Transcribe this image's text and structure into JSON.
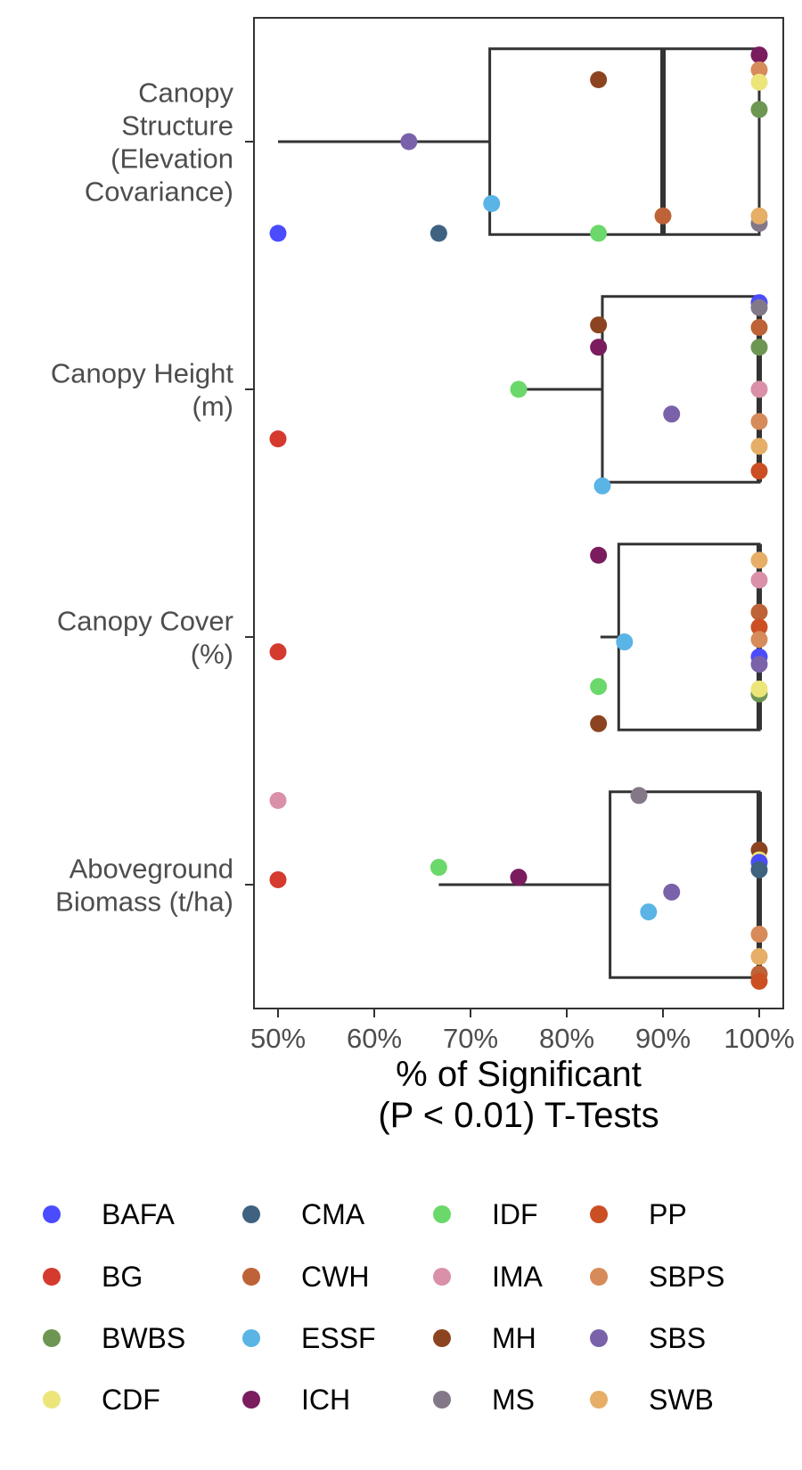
{
  "chart_data": {
    "type": "box-dot",
    "orientation": "horizontal",
    "categories": [
      {
        "label_lines": [
          "Canopy",
          "Structure",
          "(Elevation",
          "Covariance)"
        ]
      },
      {
        "label_lines": [
          "Canopy Height",
          "(m)"
        ]
      },
      {
        "label_lines": [
          "Canopy Cover",
          "(%)"
        ]
      },
      {
        "label_lines": [
          "Aboveground",
          "Biomass (t/ha)"
        ]
      }
    ],
    "xlabel_lines": [
      "% of Significant",
      "(P < 0.01) T-Tests"
    ],
    "xlim": [
      47.5,
      102.5
    ],
    "xticks": [
      50,
      60,
      70,
      80,
      90,
      100
    ],
    "xtick_labels": [
      "50%",
      "60%",
      "70%",
      "80%",
      "90%",
      "100%"
    ],
    "grid": false,
    "legend_position": "bottom",
    "series": [
      {
        "name": "BAFA",
        "color": "#4b4bff"
      },
      {
        "name": "BG",
        "color": "#d53a2f"
      },
      {
        "name": "BWBS",
        "color": "#6e9653"
      },
      {
        "name": "CDF",
        "color": "#ece57a"
      },
      {
        "name": "CMA",
        "color": "#3e6280"
      },
      {
        "name": "CWH",
        "color": "#be6237"
      },
      {
        "name": "ESSF",
        "color": "#5ab4e5"
      },
      {
        "name": "ICH",
        "color": "#7a1c5e"
      },
      {
        "name": "IDF",
        "color": "#6ad86a"
      },
      {
        "name": "IMA",
        "color": "#d990a8"
      },
      {
        "name": "MH",
        "color": "#8c4420"
      },
      {
        "name": "MS",
        "color": "#827887"
      },
      {
        "name": "PP",
        "color": "#cc4f24"
      },
      {
        "name": "SBPS",
        "color": "#d78a5a"
      },
      {
        "name": "SBS",
        "color": "#7a62aa"
      },
      {
        "name": "SWB",
        "color": "#e6ae66"
      }
    ],
    "boxes": [
      {
        "category": 0,
        "whisker_low": 50,
        "q1": 72,
        "median": 90,
        "q3": 100,
        "whisker_high": 100
      },
      {
        "category": 1,
        "whisker_low": 75,
        "q1": 83.7,
        "median": 100,
        "q3": 100,
        "whisker_high": 100
      },
      {
        "category": 2,
        "whisker_low": 83.5,
        "q1": 85.4,
        "median": 100,
        "q3": 100,
        "whisker_high": 100
      },
      {
        "category": 3,
        "whisker_low": 66.7,
        "q1": 84.5,
        "median": 100,
        "q3": 100,
        "whisker_high": 100
      }
    ],
    "points": [
      {
        "category": 0,
        "series": "ICH",
        "value": 100,
        "jitter": 0.35
      },
      {
        "category": 0,
        "series": "SBPS",
        "value": 100,
        "jitter": 0.29
      },
      {
        "category": 0,
        "series": "CDF",
        "value": 100,
        "jitter": 0.24
      },
      {
        "category": 0,
        "series": "BWBS",
        "value": 100,
        "jitter": 0.13
      },
      {
        "category": 0,
        "series": "MH",
        "value": 83.3,
        "jitter": 0.25
      },
      {
        "category": 0,
        "series": "SBS",
        "value": 63.6,
        "jitter": 0.0
      },
      {
        "category": 0,
        "series": "ESSF",
        "value": 72.2,
        "jitter": -0.25
      },
      {
        "category": 0,
        "series": "CWH",
        "value": 90,
        "jitter": -0.3
      },
      {
        "category": 0,
        "series": "MS",
        "value": 100,
        "jitter": -0.33
      },
      {
        "category": 0,
        "series": "SWB",
        "value": 100,
        "jitter": -0.3
      },
      {
        "category": 0,
        "series": "BAFA",
        "value": 50,
        "jitter": -0.37
      },
      {
        "category": 0,
        "series": "CMA",
        "value": 66.7,
        "jitter": -0.37
      },
      {
        "category": 0,
        "series": "IDF",
        "value": 83.3,
        "jitter": -0.37
      },
      {
        "category": 1,
        "series": "BAFA",
        "value": 100,
        "jitter": 0.35
      },
      {
        "category": 1,
        "series": "MS",
        "value": 100,
        "jitter": 0.33
      },
      {
        "category": 1,
        "series": "MH",
        "value": 83.3,
        "jitter": 0.26
      },
      {
        "category": 1,
        "series": "CWH",
        "value": 100,
        "jitter": 0.25
      },
      {
        "category": 1,
        "series": "ICH",
        "value": 83.3,
        "jitter": 0.17
      },
      {
        "category": 1,
        "series": "BWBS",
        "value": 100,
        "jitter": 0.17
      },
      {
        "category": 1,
        "series": "IDF",
        "value": 75,
        "jitter": 0.0
      },
      {
        "category": 1,
        "series": "CDF",
        "value": 100,
        "jitter": 0.0
      },
      {
        "category": 1,
        "series": "IMA",
        "value": 100,
        "jitter": 0.0
      },
      {
        "category": 1,
        "series": "SBS",
        "value": 90.9,
        "jitter": -0.1
      },
      {
        "category": 1,
        "series": "SBPS",
        "value": 100,
        "jitter": -0.13
      },
      {
        "category": 1,
        "series": "BG",
        "value": 50,
        "jitter": -0.2
      },
      {
        "category": 1,
        "series": "SWB",
        "value": 100,
        "jitter": -0.23
      },
      {
        "category": 1,
        "series": "PP",
        "value": 100,
        "jitter": -0.33
      },
      {
        "category": 1,
        "series": "ESSF",
        "value": 83.7,
        "jitter": -0.39
      },
      {
        "category": 2,
        "series": "ICH",
        "value": 83.3,
        "jitter": 0.33
      },
      {
        "category": 2,
        "series": "SWB",
        "value": 100,
        "jitter": 0.31
      },
      {
        "category": 2,
        "series": "IMA",
        "value": 100,
        "jitter": 0.23
      },
      {
        "category": 2,
        "series": "CWH",
        "value": 100,
        "jitter": 0.1
      },
      {
        "category": 2,
        "series": "PP",
        "value": 100,
        "jitter": 0.04
      },
      {
        "category": 2,
        "series": "SBPS",
        "value": 100,
        "jitter": -0.01
      },
      {
        "category": 2,
        "series": "ESSF",
        "value": 86,
        "jitter": -0.02
      },
      {
        "category": 2,
        "series": "BG",
        "value": 50,
        "jitter": -0.06
      },
      {
        "category": 2,
        "series": "BAFA",
        "value": 100,
        "jitter": -0.08
      },
      {
        "category": 2,
        "series": "SBS",
        "value": 100,
        "jitter": -0.11
      },
      {
        "category": 2,
        "series": "IDF",
        "value": 83.3,
        "jitter": -0.2
      },
      {
        "category": 2,
        "series": "BWBS",
        "value": 100,
        "jitter": -0.23
      },
      {
        "category": 2,
        "series": "CDF",
        "value": 100,
        "jitter": -0.21
      },
      {
        "category": 2,
        "series": "MH",
        "value": 83.3,
        "jitter": -0.35
      },
      {
        "category": 3,
        "series": "IMA",
        "value": 50,
        "jitter": 0.34
      },
      {
        "category": 3,
        "series": "MS",
        "value": 87.5,
        "jitter": 0.36
      },
      {
        "category": 3,
        "series": "MH",
        "value": 100,
        "jitter": 0.14
      },
      {
        "category": 3,
        "series": "CDF",
        "value": 100,
        "jitter": 0.1
      },
      {
        "category": 3,
        "series": "BAFA",
        "value": 100,
        "jitter": 0.09
      },
      {
        "category": 3,
        "series": "IDF",
        "value": 66.7,
        "jitter": 0.07
      },
      {
        "category": 3,
        "series": "CMA",
        "value": 100,
        "jitter": 0.06
      },
      {
        "category": 3,
        "series": "BG",
        "value": 50,
        "jitter": 0.02
      },
      {
        "category": 3,
        "series": "ICH",
        "value": 75,
        "jitter": 0.03
      },
      {
        "category": 3,
        "series": "SBS",
        "value": 90.9,
        "jitter": -0.03
      },
      {
        "category": 3,
        "series": "ESSF",
        "value": 88.5,
        "jitter": -0.11
      },
      {
        "category": 3,
        "series": "SBPS",
        "value": 100,
        "jitter": -0.2
      },
      {
        "category": 3,
        "series": "SWB",
        "value": 100,
        "jitter": -0.29
      },
      {
        "category": 3,
        "series": "CWH",
        "value": 100,
        "jitter": -0.36
      },
      {
        "category": 3,
        "series": "PP",
        "value": 100,
        "jitter": -0.39
      }
    ]
  }
}
